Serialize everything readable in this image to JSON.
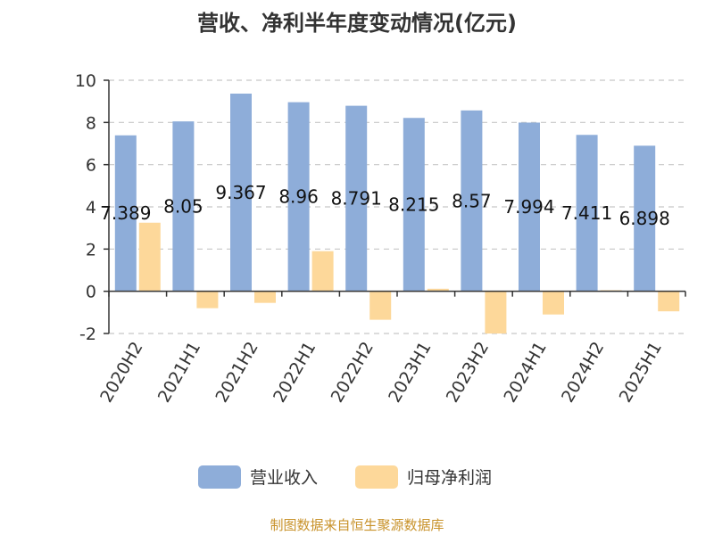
{
  "chart_data": {
    "type": "bar",
    "title": "营收、净利半年度变动情况(亿元)",
    "categories": [
      "2020H2",
      "2021H1",
      "2021H2",
      "2022H1",
      "2022H2",
      "2023H1",
      "2023H2",
      "2024H1",
      "2024H2",
      "2025H1"
    ],
    "series": [
      {
        "name": "营业收入",
        "color": "#8eadd9",
        "values": [
          7.389,
          8.05,
          9.367,
          8.96,
          8.791,
          8.215,
          8.57,
          7.994,
          7.411,
          6.898
        ],
        "labels": [
          "7.389",
          "8.05",
          "9.367",
          "8.96",
          "8.791",
          "8.215",
          "8.57",
          "7.994",
          "7.411",
          "6.898"
        ]
      },
      {
        "name": "归母净利润",
        "color": "#fdd89a",
        "values": [
          3.25,
          -0.8,
          -0.55,
          1.9,
          -1.35,
          0.12,
          -2.0,
          -1.1,
          0.05,
          -0.95
        ]
      }
    ],
    "ylim": [
      -2,
      10
    ],
    "yticks": [
      -2,
      0,
      2,
      4,
      6,
      8,
      10
    ],
    "grid": true,
    "legend_position": "bottom"
  },
  "source_note": "制图数据来自恒生聚源数据库"
}
